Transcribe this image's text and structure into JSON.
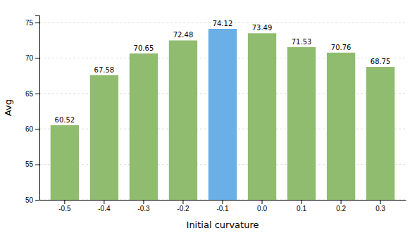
{
  "chart_data": {
    "type": "bar",
    "categories": [
      "-0.5",
      "-0.4",
      "-0.3",
      "-0.2",
      "-0.1",
      "0.0",
      "0.1",
      "0.2",
      "0.3"
    ],
    "values": [
      60.52,
      67.58,
      70.65,
      72.48,
      74.12,
      73.49,
      71.53,
      70.76,
      68.75
    ],
    "colors": [
      "#8fbc6e",
      "#8fbc6e",
      "#8fbc6e",
      "#8fbc6e",
      "#6aafe6",
      "#8fbc6e",
      "#8fbc6e",
      "#8fbc6e",
      "#8fbc6e"
    ],
    "xlabel": "Initial curvature",
    "ylabel": "Avg",
    "ylim": [
      50,
      76
    ],
    "yticks": [
      50,
      55,
      60,
      65,
      70,
      75
    ],
    "grid": true,
    "data_labels": true
  }
}
